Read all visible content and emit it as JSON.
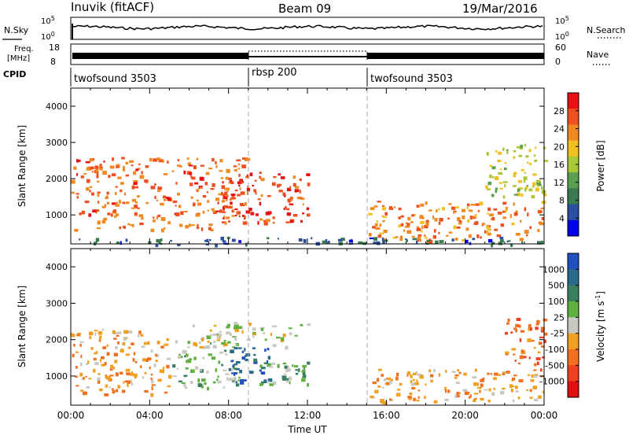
{
  "header": {
    "station": "Inuvik (fitACF)",
    "beam": "Beam 09",
    "date": "19/Mar/2016"
  },
  "strip_labels": {
    "nsky": "N.Sky",
    "nsky_ticks": [
      "10^5",
      "10^0"
    ],
    "nsearch": "N.Search",
    "nsearch_ticks": [
      "10^5",
      "10^0"
    ],
    "freq": "Freq.",
    "freq_unit": "[MHz]",
    "freq_ticks": [
      "18",
      "8"
    ],
    "nave": "Nave",
    "nave_ticks": [
      "60",
      "0"
    ],
    "cpid": "CPID"
  },
  "cpid_segments": [
    {
      "label": "twofsound 3503",
      "start_h": 0,
      "end_h": 9
    },
    {
      "label": "rbsp 200",
      "start_h": 9,
      "end_h": 15
    },
    {
      "label": "twofsound 3503",
      "start_h": 15,
      "end_h": 24
    }
  ],
  "colors": {
    "power_scale": [
      "#0000ee",
      "#2a4fa0",
      "#3a7a50",
      "#5aa050",
      "#a8c838",
      "#f0c020",
      "#f08a20",
      "#f05020",
      "#e81010"
    ],
    "velocity_scale": [
      "#2050c0",
      "#2a6a8a",
      "#3a8060",
      "#60b040",
      "#c8c8c0",
      "#f0a020",
      "#f07020",
      "#f04020",
      "#e01010"
    ]
  },
  "chart_data": [
    {
      "type": "heatmap",
      "title": "",
      "xlabel": "",
      "ylabel": "Slant Range [km]",
      "x_ticks": [
        "00:00",
        "04:00",
        "08:00",
        "12:00",
        "16:00",
        "20:00",
        "00:00"
      ],
      "y_ticks": [
        "1000",
        "2000",
        "3000",
        "4000"
      ],
      "xlim_hours": [
        0,
        24
      ],
      "ylim_km": [
        200,
        4500
      ],
      "colorbar": {
        "label": "Power [dB]",
        "ticks": [
          "28",
          "24",
          "20",
          "16",
          "12",
          "8",
          "4"
        ],
        "range": [
          0,
          30
        ]
      },
      "echo_regions": [
        {
          "t0": 0.0,
          "t1": 9.0,
          "r0": 600,
          "r1": 2600,
          "value": 24
        },
        {
          "t0": 7.5,
          "t1": 12.0,
          "r0": 800,
          "r1": 2200,
          "value": 26
        },
        {
          "t0": 15.0,
          "t1": 24.0,
          "r0": 300,
          "r1": 1400,
          "value": 22
        },
        {
          "t0": 21.0,
          "t1": 24.0,
          "r0": 1500,
          "r1": 3000,
          "value": 16
        },
        {
          "t0": 0.0,
          "t1": 24.0,
          "r0": 200,
          "r1": 400,
          "value": 6
        }
      ]
    },
    {
      "type": "heatmap",
      "title": "",
      "xlabel": "Time UT",
      "ylabel": "Slant Range [km]",
      "x_ticks": [
        "00:00",
        "04:00",
        "08:00",
        "12:00",
        "16:00",
        "20:00",
        "00:00"
      ],
      "y_ticks": [
        "1000",
        "2000",
        "3000",
        "4000"
      ],
      "xlim_hours": [
        0,
        24
      ],
      "ylim_km": [
        200,
        4500
      ],
      "colorbar": {
        "label": "Velocity [m s^-1]",
        "ticks": [
          "1000",
          "500",
          "100",
          "25",
          "-25",
          "-100",
          "-500",
          "-1000"
        ],
        "range": [
          -1200,
          1200
        ]
      },
      "echo_regions": [
        {
          "t0": 0.0,
          "t1": 5.0,
          "r0": 500,
          "r1": 2300,
          "value": -300
        },
        {
          "t0": 5.0,
          "t1": 8.5,
          "r0": 700,
          "r1": 2000,
          "value": 200
        },
        {
          "t0": 8.0,
          "t1": 10.0,
          "r0": 800,
          "r1": 1800,
          "value": 900
        },
        {
          "t0": 6.0,
          "t1": 12.0,
          "r0": 1800,
          "r1": 2500,
          "value": 0
        },
        {
          "t0": 9.5,
          "t1": 12.0,
          "r0": 800,
          "r1": 1400,
          "value": 300
        },
        {
          "t0": 15.0,
          "t1": 24.0,
          "r0": 300,
          "r1": 1200,
          "value": -300
        },
        {
          "t0": 22.0,
          "t1": 24.0,
          "r0": 1200,
          "r1": 2600,
          "value": -600
        }
      ]
    }
  ]
}
